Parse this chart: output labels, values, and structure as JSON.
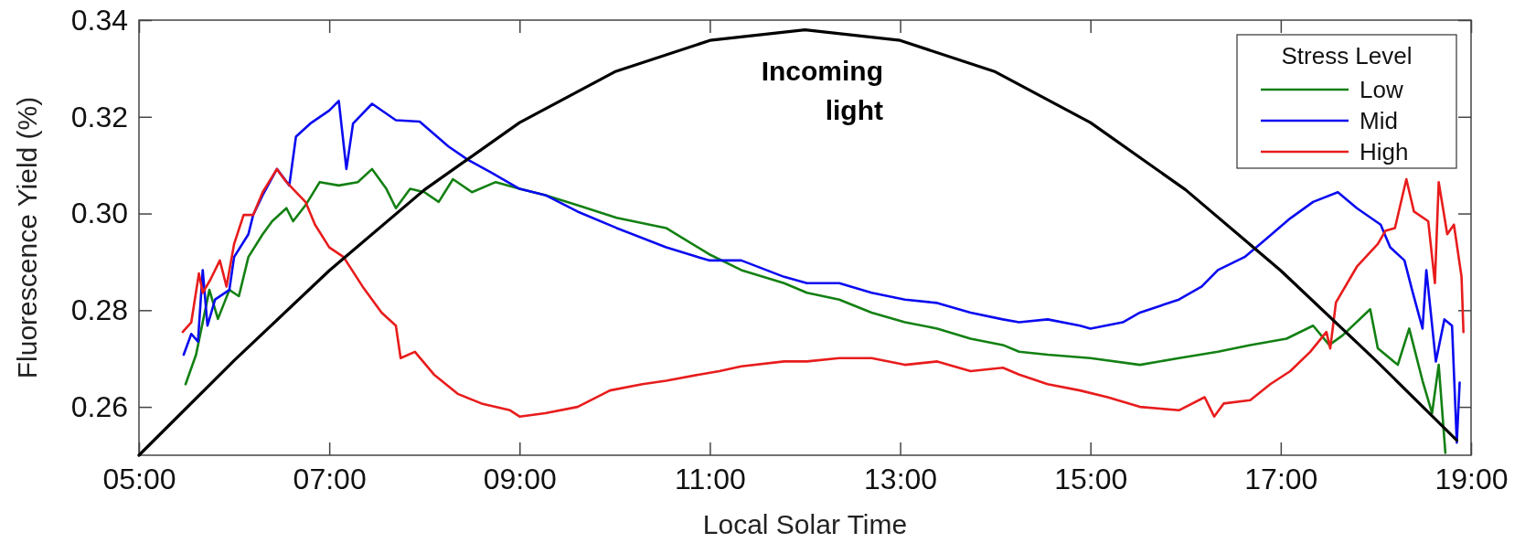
{
  "chart_data": {
    "type": "line",
    "xlabel": "Local Solar Time",
    "ylabel": "Fluorescence Yield (%)",
    "legend_title": "Stress Level",
    "legend": "top right",
    "grid": false,
    "line_style": "solid",
    "marker": "none",
    "xlim": [
      5,
      19
    ],
    "xticks": [
      {
        "value": 5,
        "label": "05:00"
      },
      {
        "value": 7,
        "label": "07:00"
      },
      {
        "value": 9,
        "label": "09:00"
      },
      {
        "value": 11,
        "label": "11:00"
      },
      {
        "value": 13,
        "label": "13:00"
      },
      {
        "value": 15,
        "label": "15:00"
      },
      {
        "value": 17,
        "label": "17:00"
      },
      {
        "value": 19,
        "label": "19:00"
      }
    ],
    "ylim": [
      0.25,
      0.34
    ],
    "yticks": [
      {
        "value": 0.26,
        "label": "0.26"
      },
      {
        "value": 0.28,
        "label": "0.28"
      },
      {
        "value": 0.3,
        "label": "0.30"
      },
      {
        "value": 0.32,
        "label": "0.32"
      },
      {
        "value": 0.34,
        "label": "0.34"
      }
    ],
    "annotations": [
      "Incoming light"
    ],
    "series": [
      {
        "name": "Low",
        "color": "#138013",
        "x": [
          5.49,
          5.6,
          5.74,
          5.83,
          5.95,
          6.05,
          6.15,
          6.3,
          6.4,
          6.55,
          6.62,
          6.75,
          6.9,
          7.1,
          7.3,
          7.45,
          7.6,
          7.7,
          7.85,
          8,
          8.15,
          8.3,
          8.5,
          8.75,
          9,
          9.27,
          9.61,
          10.02,
          10.54,
          10.99,
          11.33,
          11.78,
          12.02,
          12.36,
          12.7,
          13.05,
          13.39,
          13.74,
          14.08,
          14.25,
          14.55,
          15,
          15.52,
          15.93,
          16.34,
          16.68,
          17.06,
          17.34,
          17.51,
          17.65,
          17.94,
          18.02,
          18.23,
          18.35,
          18.49,
          18.59,
          18.66,
          18.73
        ],
        "values": [
          0.2647,
          0.2708,
          0.2842,
          0.2782,
          0.2842,
          0.2829,
          0.291,
          0.2957,
          0.2984,
          0.3011,
          0.2984,
          0.3017,
          0.3065,
          0.3058,
          0.3065,
          0.3092,
          0.3051,
          0.3011,
          0.3051,
          0.3044,
          0.3024,
          0.3071,
          0.3044,
          0.3065,
          0.3051,
          0.3038,
          0.3017,
          0.2991,
          0.297,
          0.2916,
          0.2883,
          0.2856,
          0.2836,
          0.2822,
          0.2795,
          0.2775,
          0.2762,
          0.2741,
          0.2728,
          0.2714,
          0.2708,
          0.2701,
          0.2687,
          0.2701,
          0.2714,
          0.2728,
          0.2741,
          0.2768,
          0.2728,
          0.2748,
          0.2802,
          0.2721,
          0.2687,
          0.2762,
          0.2654,
          0.2587,
          0.2687,
          0.2505
        ]
      },
      {
        "name": "Mid",
        "color": "#0a0af0",
        "x": [
          5.47,
          5.55,
          5.62,
          5.67,
          5.72,
          5.8,
          5.95,
          6,
          6.15,
          6.2,
          6.3,
          6.45,
          6.58,
          6.65,
          6.8,
          7,
          7.1,
          7.18,
          7.25,
          7.45,
          7.7,
          7.95,
          8.05,
          8.25,
          8.45,
          8.7,
          9,
          9.27,
          9.61,
          10.02,
          10.54,
          10.99,
          11.33,
          11.78,
          12.02,
          12.36,
          12.7,
          13.05,
          13.39,
          13.74,
          14.08,
          14.25,
          14.55,
          14.89,
          15,
          15.34,
          15.52,
          15.93,
          16.17,
          16.34,
          16.62,
          16.82,
          17.1,
          17.34,
          17.6,
          17.8,
          18.05,
          18.15,
          18.3,
          18.38,
          18.49,
          18.53,
          18.63,
          18.72,
          18.8,
          18.85,
          18.88
        ],
        "values": [
          0.2708,
          0.2751,
          0.2735,
          0.2883,
          0.2768,
          0.2822,
          0.2842,
          0.291,
          0.2957,
          0.2997,
          0.3038,
          0.3092,
          0.3058,
          0.3159,
          0.3186,
          0.3213,
          0.3233,
          0.3092,
          0.3186,
          0.3227,
          0.3193,
          0.319,
          0.3173,
          0.3139,
          0.3112,
          0.3085,
          0.3051,
          0.3038,
          0.3004,
          0.297,
          0.293,
          0.2903,
          0.2903,
          0.2869,
          0.2856,
          0.2856,
          0.2836,
          0.2822,
          0.2815,
          0.2795,
          0.2781,
          0.2775,
          0.2781,
          0.2768,
          0.2762,
          0.2775,
          0.2795,
          0.2822,
          0.2849,
          0.2883,
          0.291,
          0.2943,
          0.299,
          0.3024,
          0.3044,
          0.3011,
          0.2977,
          0.293,
          0.2903,
          0.2842,
          0.2762,
          0.2883,
          0.2694,
          0.2781,
          0.2768,
          0.2526,
          0.265
        ]
      },
      {
        "name": "High",
        "color": "#e81c1c",
        "x": [
          5.46,
          5.55,
          5.63,
          5.67,
          5.75,
          5.85,
          5.92,
          6,
          6.1,
          6.2,
          6.3,
          6.45,
          6.55,
          6.68,
          6.75,
          6.85,
          7,
          7.15,
          7.35,
          7.55,
          7.7,
          7.75,
          7.9,
          8.1,
          8.35,
          8.6,
          8.9,
          9,
          9.27,
          9.61,
          9.95,
          10.29,
          10.54,
          10.89,
          11.1,
          11.33,
          11.78,
          12.02,
          12.36,
          12.7,
          13.05,
          13.39,
          13.74,
          14.08,
          14.25,
          14.55,
          14.89,
          15.18,
          15.52,
          15.93,
          16.2,
          16.3,
          16.4,
          16.68,
          16.89,
          17.1,
          17.31,
          17.48,
          17.52,
          17.58,
          17.8,
          18.02,
          18.1,
          18.2,
          18.32,
          18.4,
          18.55,
          18.62,
          18.66,
          18.75,
          18.82,
          18.9,
          18.92
        ],
        "values": [
          0.2755,
          0.2775,
          0.2876,
          0.2836,
          0.2863,
          0.2903,
          0.2849,
          0.2937,
          0.2997,
          0.2997,
          0.3044,
          0.3092,
          0.3065,
          0.3038,
          0.3024,
          0.2977,
          0.293,
          0.291,
          0.2849,
          0.2795,
          0.2768,
          0.2701,
          0.2714,
          0.2667,
          0.2627,
          0.2607,
          0.2593,
          0.258,
          0.2587,
          0.26,
          0.2634,
          0.2647,
          0.2654,
          0.2667,
          0.2674,
          0.2684,
          0.2694,
          0.2694,
          0.2701,
          0.2701,
          0.2687,
          0.2694,
          0.2674,
          0.2681,
          0.2667,
          0.2647,
          0.2634,
          0.262,
          0.26,
          0.2593,
          0.262,
          0.258,
          0.2607,
          0.2614,
          0.2647,
          0.2674,
          0.2714,
          0.2755,
          0.2721,
          0.2816,
          0.289,
          0.2937,
          0.2964,
          0.297,
          0.3071,
          0.3004,
          0.2984,
          0.2856,
          0.3065,
          0.2957,
          0.2977,
          0.2869,
          0.2755
        ]
      },
      {
        "color": "#000000",
        "x": [
          5,
          6,
          7,
          8,
          9,
          10,
          11,
          12,
          13,
          14,
          15,
          16,
          17,
          18,
          18.85
        ],
        "values": [
          0.25,
          0.2696,
          0.2882,
          0.3049,
          0.3188,
          0.3293,
          0.3358,
          0.338,
          0.3358,
          0.3293,
          0.3188,
          0.3049,
          0.2882,
          0.2696,
          0.2531
        ]
      }
    ]
  }
}
